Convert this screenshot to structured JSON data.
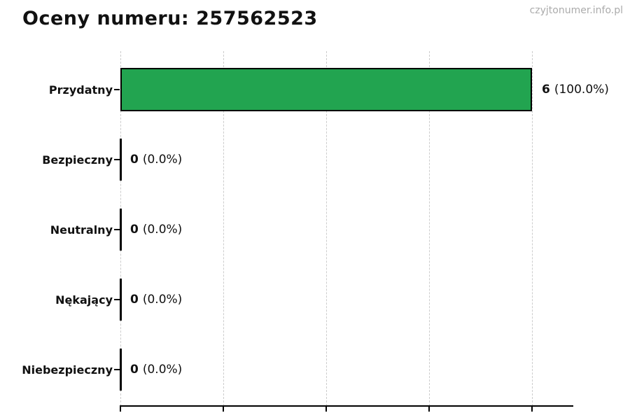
{
  "header": {
    "title": "Oceny numeru: 257562523",
    "watermark": "czyjtonumer.info.pl"
  },
  "chart_data": {
    "type": "bar",
    "orientation": "horizontal",
    "title": "Oceny numeru: 257562523",
    "categories": [
      "Przydatny",
      "Bezpieczny",
      "Neutralny",
      "Nękający",
      "Niebezpieczny"
    ],
    "values": [
      6,
      0,
      0,
      0,
      0
    ],
    "percent_labels": [
      "(100.0%)",
      "(0.0%)",
      "(0.0%)",
      "(0.0%)",
      "(0.0%)"
    ],
    "value_labels": [
      "6 (100.0%)",
      "0 (0.0%)",
      "0 (0.0%)",
      "0 (0.0%)",
      "0 (0.0%)"
    ],
    "xlabel": "",
    "ylabel": "",
    "xlim": [
      0,
      6.6
    ],
    "x_ticks": [
      0,
      1.5,
      3,
      4.5,
      6
    ],
    "x_tick_labels_shown": false,
    "grid": "vertical-dashed",
    "legend": "none",
    "colors": {
      "bar_fill": "#22a450",
      "bar_border": "#000000",
      "gridline": "#cccccc",
      "axis": "#000000",
      "text": "#111111",
      "watermark": "#ababab",
      "background": "#ffffff"
    }
  }
}
